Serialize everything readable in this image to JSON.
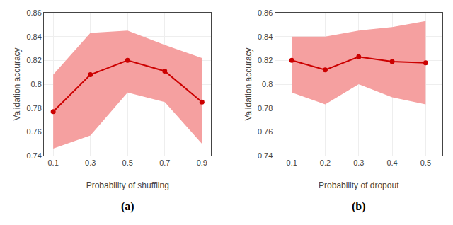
{
  "chart_data": [
    {
      "type": "line",
      "x": [
        0.1,
        0.3,
        0.5,
        0.7,
        0.9
      ],
      "series": [
        {
          "type": "band",
          "color": "#f5a0a0",
          "upper": [
            0.808,
            0.843,
            0.845,
            0.833,
            0.822
          ],
          "lower": [
            0.746,
            0.757,
            0.793,
            0.785,
            0.75
          ]
        },
        {
          "type": "line",
          "color": "#cc0000",
          "marker": "circle",
          "values": [
            0.777,
            0.808,
            0.82,
            0.811,
            0.785
          ]
        }
      ],
      "x_label": "Probability of shuffling",
      "y_label": "Validation accuracy",
      "annotations": [
        "(a)"
      ],
      "xlim": [
        0.05,
        0.95
      ],
      "xticks": [
        0.1,
        0.3,
        0.5,
        0.7,
        0.9
      ],
      "ylim": [
        0.74,
        0.86
      ],
      "yticks": [
        0.74,
        0.76,
        0.78,
        0.8,
        0.82,
        0.84,
        0.86
      ],
      "grid": true
    },
    {
      "type": "line",
      "x": [
        0.1,
        0.2,
        0.3,
        0.4,
        0.5
      ],
      "series": [
        {
          "type": "band",
          "color": "#f5a0a0",
          "upper": [
            0.84,
            0.84,
            0.845,
            0.848,
            0.853
          ],
          "lower": [
            0.793,
            0.783,
            0.8,
            0.789,
            0.783
          ]
        },
        {
          "type": "line",
          "color": "#cc0000",
          "marker": "circle",
          "values": [
            0.82,
            0.812,
            0.823,
            0.819,
            0.818
          ]
        }
      ],
      "x_label": "Probability of dropout",
      "y_label": "Validation accuracy",
      "annotations": [
        "(b)"
      ],
      "xlim": [
        0.05,
        0.55
      ],
      "xticks": [
        0.1,
        0.2,
        0.3,
        0.4,
        0.5
      ],
      "ylim": [
        0.74,
        0.86
      ],
      "yticks": [
        0.74,
        0.76,
        0.78,
        0.8,
        0.82,
        0.84,
        0.86
      ],
      "grid": true
    }
  ]
}
